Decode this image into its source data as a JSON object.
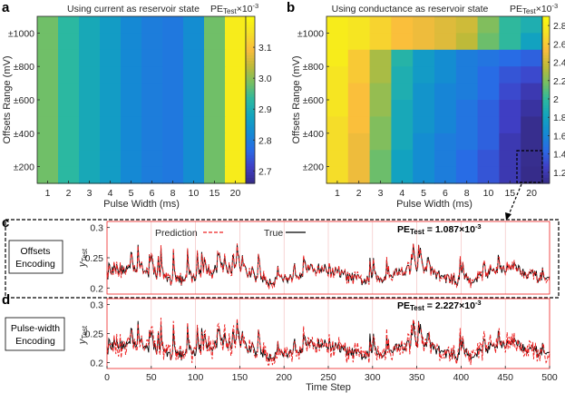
{
  "panel_labels": {
    "a": "a",
    "b": "b",
    "c": "c",
    "d": "d"
  },
  "chart_data": [
    {
      "id": "a",
      "type": "heatmap",
      "title": "Using current as reservoir state",
      "xlabel": "Pulse Width (ms)",
      "ylabel": "Offsets Range (mV)",
      "x_categories": [
        "1",
        "2",
        "3",
        "4",
        "5",
        "6",
        "8",
        "10",
        "15",
        "20"
      ],
      "y_ticklabels_top_to_bottom": [
        "±1000",
        "±800",
        "±600",
        "±400",
        "±200"
      ],
      "rows": 10,
      "values_by_column": [
        2.98,
        2.93,
        2.89,
        2.86,
        2.82,
        2.8,
        2.79,
        2.83,
        2.98,
        3.17
      ],
      "colorbar": {
        "label_main": "PE",
        "label_sub": "Test",
        "label_exp": "×10",
        "label_exp_power": "-3",
        "ticks": [
          "3.1",
          "3.0",
          "2.9",
          "2.8",
          "2.7"
        ],
        "tick_values": [
          3.1,
          3.0,
          2.9,
          2.8,
          2.7
        ],
        "range": [
          2.66,
          3.2
        ]
      }
    },
    {
      "id": "b",
      "type": "heatmap",
      "title": "Using conductance as reservoir state",
      "xlabel": "Pulse Width (ms)",
      "ylabel": "Offsets Range (mV)",
      "x_categories": [
        "1",
        "2",
        "3",
        "4",
        "5",
        "6",
        "8",
        "10",
        "15",
        "20"
      ],
      "y_ticklabels_top_to_bottom": [
        "±1000",
        "±800",
        "±600",
        "±400",
        "±200"
      ],
      "rows": 10,
      "values_rows_top_to_bottom": [
        [
          2.8,
          2.75,
          2.65,
          2.55,
          2.5,
          2.45,
          2.4,
          2.2,
          2.0,
          1.9
        ],
        [
          2.8,
          2.75,
          2.65,
          2.55,
          2.5,
          2.45,
          2.35,
          2.15,
          2.0,
          1.8
        ],
        [
          2.8,
          2.6,
          2.3,
          1.95,
          1.75,
          1.65,
          1.55,
          1.5,
          1.45,
          1.4
        ],
        [
          2.75,
          2.6,
          2.3,
          1.9,
          1.75,
          1.65,
          1.55,
          1.45,
          1.35,
          1.3
        ],
        [
          2.75,
          2.55,
          2.25,
          1.9,
          1.7,
          1.6,
          1.55,
          1.45,
          1.3,
          1.2
        ],
        [
          2.75,
          2.55,
          2.25,
          1.85,
          1.7,
          1.6,
          1.5,
          1.4,
          1.25,
          1.15
        ],
        [
          2.7,
          2.55,
          2.2,
          1.85,
          1.7,
          1.6,
          1.5,
          1.4,
          1.25,
          1.1
        ],
        [
          2.7,
          2.5,
          2.2,
          1.85,
          1.65,
          1.55,
          1.5,
          1.4,
          1.2,
          1.1
        ],
        [
          2.7,
          2.5,
          2.15,
          1.8,
          1.65,
          1.55,
          1.45,
          1.35,
          1.2,
          1.1
        ],
        [
          2.7,
          2.5,
          2.15,
          1.8,
          1.65,
          1.55,
          1.45,
          1.35,
          1.2,
          1.087
        ]
      ],
      "colorbar": {
        "label_main": "PE",
        "label_sub": "Test",
        "label_exp": "×10",
        "label_exp_power": "-3",
        "ticks": [
          "2.8",
          "2.6",
          "2.4",
          "2.2",
          "2",
          "1.8",
          "1.6",
          "1.4",
          "1.2"
        ],
        "tick_values": [
          2.8,
          2.6,
          2.4,
          2.2,
          2.0,
          1.8,
          1.6,
          1.4,
          1.2
        ],
        "range": [
          1.08,
          2.9
        ]
      }
    },
    {
      "id": "c",
      "type": "line",
      "box_label_line1": "Offsets",
      "box_label_line2": "Encoding",
      "ylabel": "y",
      "ylabel_sub": "Test",
      "y_ticks": [
        "0.3",
        "0.25",
        "0.2"
      ],
      "y_tick_values": [
        0.3,
        0.25,
        0.2
      ],
      "ylim": [
        0.19,
        0.31
      ],
      "xlim": [
        0,
        500
      ],
      "pe_main": "PE",
      "pe_sub": "Test",
      "pe_value": " = 1.087×10",
      "pe_power": "-3",
      "series": [
        {
          "name": "Prediction",
          "color": "#ee2222",
          "style": "dashed"
        },
        {
          "name": "True",
          "color": "#000000",
          "style": "solid"
        }
      ]
    },
    {
      "id": "d",
      "type": "line",
      "box_label_line1": "Pulse-width",
      "box_label_line2": "Encoding",
      "ylabel": "y",
      "ylabel_sub": "Test",
      "y_ticks": [
        "0.3",
        "0.25",
        "0.2"
      ],
      "y_tick_values": [
        0.3,
        0.25,
        0.2
      ],
      "ylim": [
        0.19,
        0.31
      ],
      "xlim": [
        0,
        500
      ],
      "xlabel": "Time Step",
      "x_ticks": [
        "0",
        "50",
        "100",
        "150",
        "200",
        "250",
        "300",
        "350",
        "400",
        "450",
        "500"
      ],
      "x_tick_values": [
        0,
        50,
        100,
        150,
        200,
        250,
        300,
        350,
        400,
        450,
        500
      ],
      "pe_main": "PE",
      "pe_sub": "Test",
      "pe_value": " = 2.227×10",
      "pe_power": "-3"
    }
  ]
}
